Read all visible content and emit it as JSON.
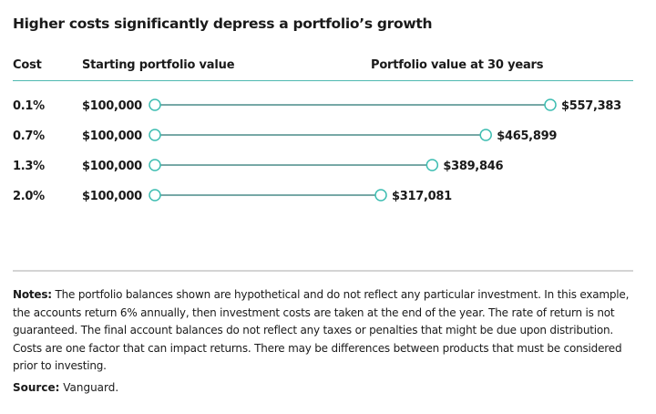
{
  "title": "Higher costs significantly depress a portfolio’s growth",
  "chart_data": {
    "type": "dumbbell",
    "columns": {
      "cost": "Cost",
      "start": "Starting portfolio value",
      "end": "Portfolio value at 30 years"
    },
    "categories": [
      "0.1%",
      "0.7%",
      "1.3%",
      "2.0%"
    ],
    "start_values": [
      100000,
      100000,
      100000,
      100000
    ],
    "end_values": [
      557383,
      465899,
      389846,
      317081
    ],
    "start_labels": [
      "$100,000",
      "$100,000",
      "$100,000",
      "$100,000"
    ],
    "end_labels": [
      "$557,383",
      "$465,899",
      "$389,846",
      "$317,081"
    ],
    "colors": {
      "line": "#4a8c88",
      "marker": "#3dbdb1",
      "rule": "#4fb9b0"
    }
  },
  "notes": {
    "label": "Notes:",
    "text": " The portfolio balances shown are hypothetical and do not reflect any particular investment. In this example, the accounts return 6% annually, then investment costs are taken at the end of the year. The rate of return is not guaranteed. The final account balances do not reflect any taxes or penalties that might be due upon distribution. Costs are one factor that can impact returns. There may be differences between products that must be considered prior to investing."
  },
  "source": {
    "label": "Source:",
    "text": " Vanguard."
  }
}
